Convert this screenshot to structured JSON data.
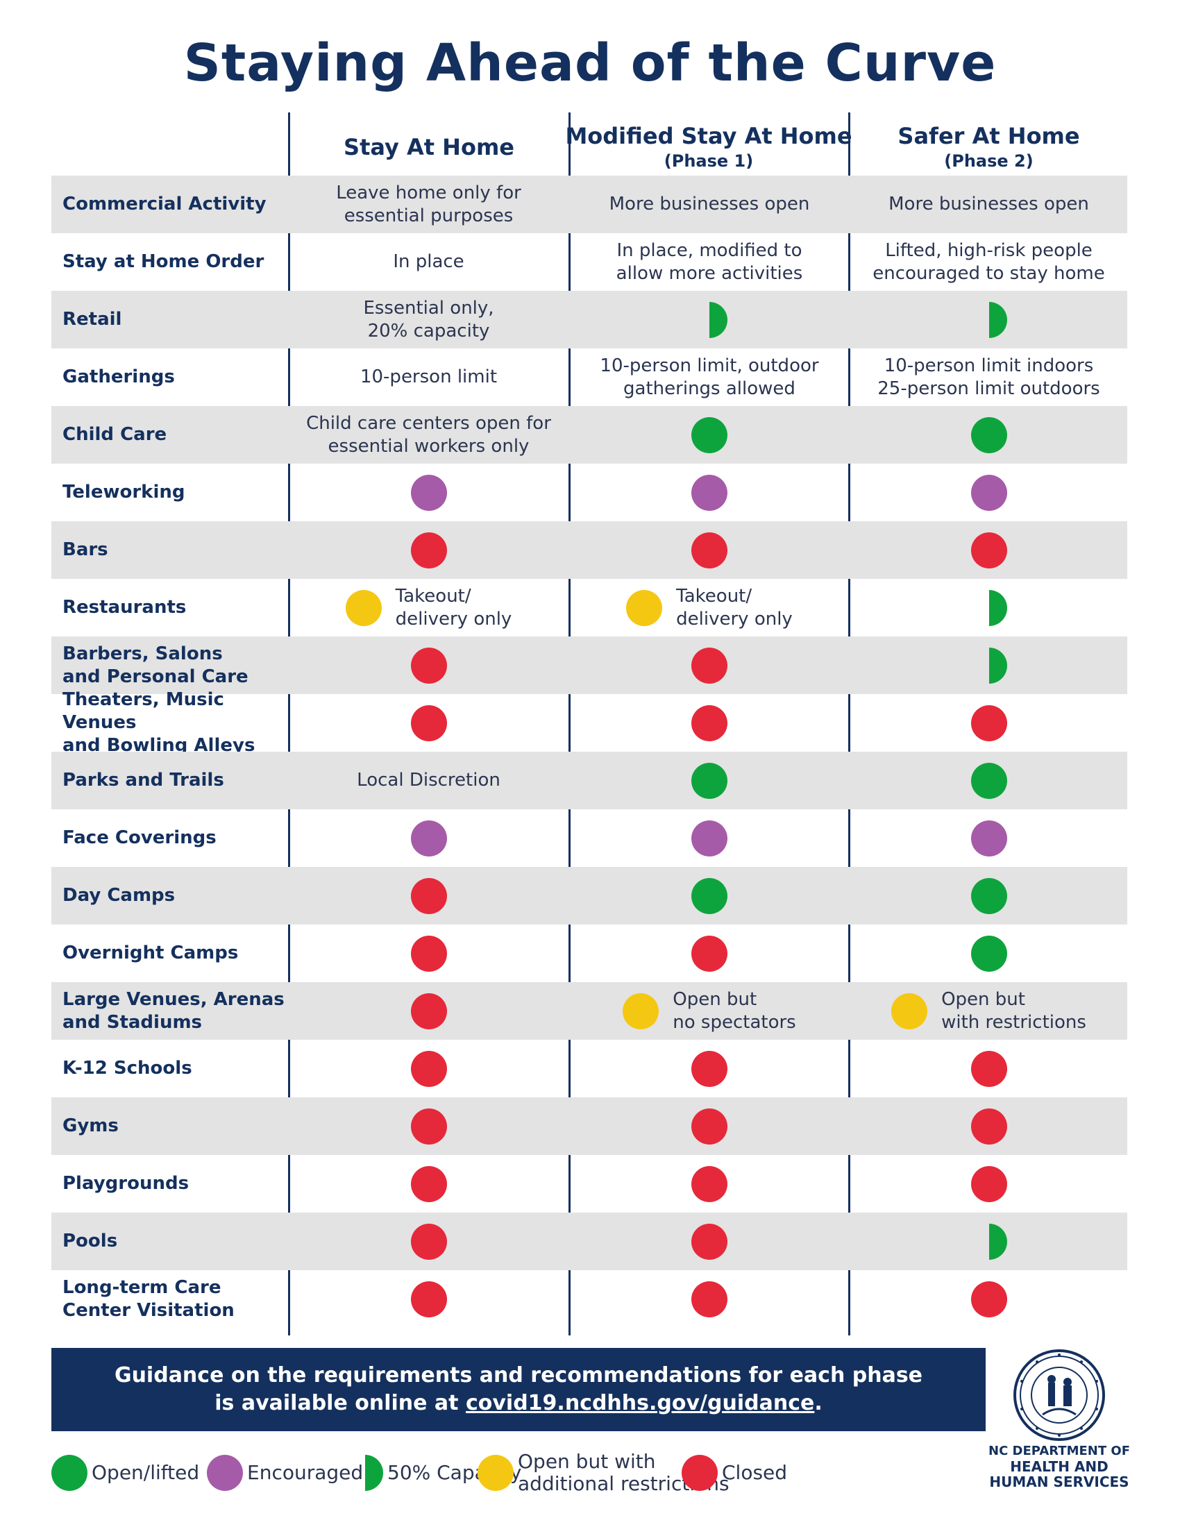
{
  "title": "Staying Ahead of the Curve",
  "columns": [
    {
      "title": "Stay At Home",
      "subtitle": ""
    },
    {
      "title": "Modified Stay At Home",
      "subtitle": "(Phase 1)"
    },
    {
      "title": "Safer At Home",
      "subtitle": "(Phase 2)"
    }
  ],
  "rows": [
    {
      "label": "Commercial Activity",
      "cells": [
        {
          "icon": "",
          "text": "Leave home only for\nessential purposes"
        },
        {
          "icon": "",
          "text": "More businesses open"
        },
        {
          "icon": "",
          "text": "More businesses open"
        }
      ]
    },
    {
      "label": "Stay at Home Order",
      "cells": [
        {
          "icon": "",
          "text": "In place"
        },
        {
          "icon": "",
          "text": "In place, modified to\nallow more activities"
        },
        {
          "icon": "",
          "text": "Lifted, high-risk people\nencouraged to stay home"
        }
      ]
    },
    {
      "label": "Retail",
      "cells": [
        {
          "icon": "",
          "text": "Essential only,\n20% capacity"
        },
        {
          "icon": "half",
          "text": ""
        },
        {
          "icon": "half",
          "text": ""
        }
      ]
    },
    {
      "label": "Gatherings",
      "cells": [
        {
          "icon": "",
          "text": "10-person limit"
        },
        {
          "icon": "",
          "text": "10-person limit, outdoor\ngatherings allowed"
        },
        {
          "icon": "",
          "text": "10-person limit indoors\n25-person limit outdoors"
        }
      ]
    },
    {
      "label": "Child Care",
      "cells": [
        {
          "icon": "",
          "text": "Child care centers open for\nessential workers only"
        },
        {
          "icon": "green",
          "text": ""
        },
        {
          "icon": "green",
          "text": ""
        }
      ]
    },
    {
      "label": "Teleworking",
      "cells": [
        {
          "icon": "purple",
          "text": ""
        },
        {
          "icon": "purple",
          "text": ""
        },
        {
          "icon": "purple",
          "text": ""
        }
      ]
    },
    {
      "label": "Bars",
      "cells": [
        {
          "icon": "red",
          "text": ""
        },
        {
          "icon": "red",
          "text": ""
        },
        {
          "icon": "red",
          "text": ""
        }
      ]
    },
    {
      "label": "Restaurants",
      "cells": [
        {
          "icon": "yellow",
          "text": "Takeout/\ndelivery only"
        },
        {
          "icon": "yellow",
          "text": "Takeout/\ndelivery only"
        },
        {
          "icon": "half",
          "text": ""
        }
      ]
    },
    {
      "label": "Barbers, Salons\nand Personal Care",
      "cells": [
        {
          "icon": "red",
          "text": ""
        },
        {
          "icon": "red",
          "text": ""
        },
        {
          "icon": "half",
          "text": ""
        }
      ]
    },
    {
      "label": "Theaters, Music Venues\nand Bowling Alleys",
      "cells": [
        {
          "icon": "red",
          "text": ""
        },
        {
          "icon": "red",
          "text": ""
        },
        {
          "icon": "red",
          "text": ""
        }
      ]
    },
    {
      "label": "Parks and Trails",
      "cells": [
        {
          "icon": "",
          "text": "Local Discretion"
        },
        {
          "icon": "green",
          "text": ""
        },
        {
          "icon": "green",
          "text": ""
        }
      ]
    },
    {
      "label": "Face Coverings",
      "cells": [
        {
          "icon": "purple",
          "text": ""
        },
        {
          "icon": "purple",
          "text": ""
        },
        {
          "icon": "purple",
          "text": ""
        }
      ]
    },
    {
      "label": "Day Camps",
      "cells": [
        {
          "icon": "red",
          "text": ""
        },
        {
          "icon": "green",
          "text": ""
        },
        {
          "icon": "green",
          "text": ""
        }
      ]
    },
    {
      "label": "Overnight Camps",
      "cells": [
        {
          "icon": "red",
          "text": ""
        },
        {
          "icon": "red",
          "text": ""
        },
        {
          "icon": "green",
          "text": ""
        }
      ]
    },
    {
      "label": "Large Venues, Arenas\nand Stadiums",
      "cells": [
        {
          "icon": "red",
          "text": ""
        },
        {
          "icon": "yellow",
          "text": "Open but\nno spectators"
        },
        {
          "icon": "yellow",
          "text": "Open but\nwith restrictions"
        }
      ]
    },
    {
      "label": "K-12 Schools",
      "cells": [
        {
          "icon": "red",
          "text": ""
        },
        {
          "icon": "red",
          "text": ""
        },
        {
          "icon": "red",
          "text": ""
        }
      ]
    },
    {
      "label": "Gyms",
      "cells": [
        {
          "icon": "red",
          "text": ""
        },
        {
          "icon": "red",
          "text": ""
        },
        {
          "icon": "red",
          "text": ""
        }
      ]
    },
    {
      "label": "Playgrounds",
      "cells": [
        {
          "icon": "red",
          "text": ""
        },
        {
          "icon": "red",
          "text": ""
        },
        {
          "icon": "red",
          "text": ""
        }
      ]
    },
    {
      "label": "Pools",
      "cells": [
        {
          "icon": "red",
          "text": ""
        },
        {
          "icon": "red",
          "text": ""
        },
        {
          "icon": "half",
          "text": ""
        }
      ]
    },
    {
      "label": "Long-term Care\nCenter Visitation",
      "cells": [
        {
          "icon": "red",
          "text": ""
        },
        {
          "icon": "red",
          "text": ""
        },
        {
          "icon": "red",
          "text": ""
        }
      ]
    }
  ],
  "banner": {
    "line1": "Guidance on the requirements and recommendations for each phase",
    "line2_prefix": "is available online at ",
    "link": "covid19.ncdhhs.gov/guidance",
    "line2_suffix": "."
  },
  "legend": [
    {
      "icon": "green",
      "label": "Open/lifted"
    },
    {
      "icon": "purple",
      "label": "Encouraged"
    },
    {
      "icon": "half",
      "label": "50% Capacity"
    },
    {
      "icon": "yellow",
      "label": "Open but with\nadditional restrictions"
    },
    {
      "icon": "red",
      "label": "Closed"
    }
  ],
  "department": {
    "line1": "NC DEPARTMENT OF",
    "line2": "HEALTH AND",
    "line3": "HUMAN SERVICES",
    "seal_name": "state-seal-icon"
  },
  "colors": {
    "navy": "#14305e",
    "open_green": "#0ea43d",
    "encouraged_purple": "#a65ba8",
    "restricted_yellow": "#f4c712",
    "closed_red": "#e5293a",
    "row_shade": "#e3e3e3"
  }
}
